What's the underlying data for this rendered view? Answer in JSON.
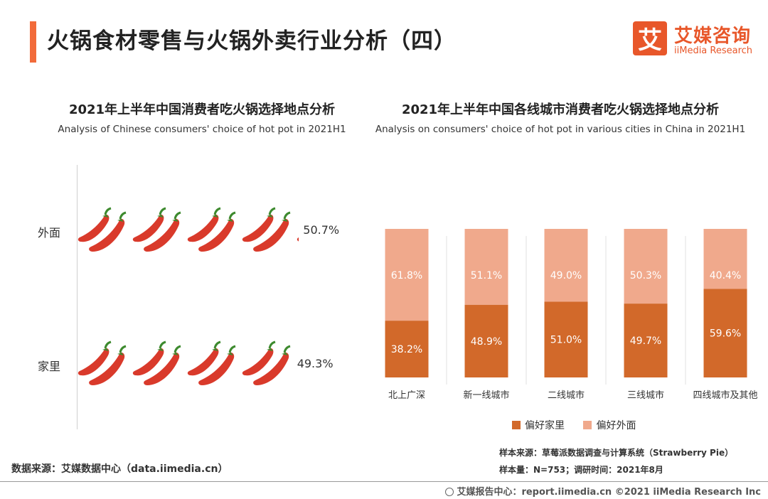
{
  "page": {
    "title": "火锅食材零售与火锅外卖行业分析（四）",
    "accent_color": "#F26B3A"
  },
  "logo": {
    "icon_char": "艾",
    "cn": "艾媒咨询",
    "en": "iiMedia Research",
    "color": "#E8572A"
  },
  "left_chart": {
    "title": "2021年上半年中国消费者吃火锅选择地点分析",
    "subtitle": "Analysis of Chinese consumers' choice of hot pot in 2021H1",
    "icon": "chili-pepper-icon"
  },
  "right_chart": {
    "title": "2021年上半年中国各线城市消费者吃火锅选择地点分析",
    "subtitle": "Analysis on consumers' choice of hot pot in various cities in China in 2021H1"
  },
  "chart_data": [
    {
      "type": "bar",
      "orientation": "horizontal-pictograph",
      "categories": [
        "外面",
        "家里"
      ],
      "values": [
        50.7,
        49.3
      ],
      "value_labels": [
        "50.7%",
        "49.3%"
      ],
      "unit": "%",
      "icon": "chili-pepper-icon",
      "color": "#D93A2B"
    },
    {
      "type": "bar",
      "stacked": true,
      "percent": true,
      "categories": [
        "北上广深",
        "新一线城市",
        "二线城市",
        "三线城市",
        "四线城市及其他"
      ],
      "series": [
        {
          "name": "偏好家里",
          "values": [
            38.2,
            48.9,
            51.0,
            49.7,
            59.6
          ],
          "labels": [
            "38.2%",
            "48.9%",
            "51.0%",
            "49.7%",
            "59.6%"
          ],
          "color": "#D2692A"
        },
        {
          "name": "偏好外面",
          "values": [
            61.8,
            51.1,
            49.0,
            50.3,
            40.4
          ],
          "labels": [
            "61.8%",
            "51.1%",
            "49.0%",
            "50.3%",
            "40.4%"
          ],
          "color": "#F0A98C"
        }
      ],
      "ylim": [
        0,
        100
      ],
      "legend": "bottom"
    }
  ],
  "sources": {
    "left": "数据来源：艾媒数据中心（data.iimedia.cn）",
    "right_line1": "样本来源：草莓派数据调查与计算系统（Strawberry Pie）",
    "right_line2": "样本量：N=753；调研时间：2021年8月"
  },
  "footer": {
    "text": "艾媒报告中心：report.iimedia.cn   ©2021  iiMedia Research  Inc"
  }
}
